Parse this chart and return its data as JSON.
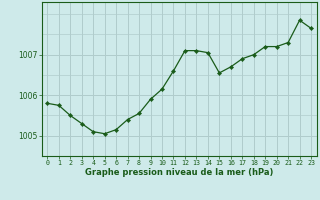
{
  "x": [
    0,
    1,
    2,
    3,
    4,
    5,
    6,
    7,
    8,
    9,
    10,
    11,
    12,
    13,
    14,
    15,
    16,
    17,
    18,
    19,
    20,
    21,
    22,
    23
  ],
  "y": [
    1005.8,
    1005.75,
    1005.5,
    1005.3,
    1005.1,
    1005.05,
    1005.15,
    1005.4,
    1005.55,
    1005.9,
    1006.15,
    1006.6,
    1007.1,
    1007.1,
    1007.05,
    1006.55,
    1006.7,
    1006.9,
    1007.0,
    1007.2,
    1007.2,
    1007.3,
    1007.85,
    1007.65
  ],
  "line_color": "#1a5c1a",
  "marker": "D",
  "marker_size": 2.2,
  "bg_color": "#ceeaea",
  "grid_color": "#b0cccc",
  "xlabel": "Graphe pression niveau de la mer (hPa)",
  "ylim": [
    1004.5,
    1008.3
  ],
  "yticks": [
    1005,
    1006,
    1007
  ],
  "xlim": [
    -0.5,
    23.5
  ],
  "axis_color": "#1a5c1a",
  "tick_label_color": "#1a5c1a",
  "xlabel_color": "#1a5c1a"
}
